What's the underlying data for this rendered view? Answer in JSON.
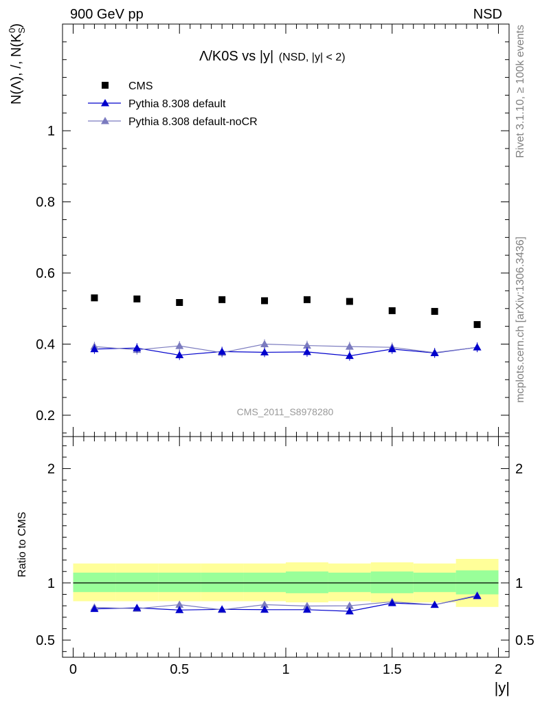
{
  "header": {
    "left": "900 GeV pp",
    "right": "NSD"
  },
  "side_labels": {
    "rivet": "Rivet 3.1.10, ≥ 100k events",
    "mcplots": "mcplots.cern.ch [arXiv:1306.3436]"
  },
  "chart_data": [
    {
      "type": "scatter",
      "title_main": "Λ/K0S vs |y|",
      "title_sub": "(NSD, |y| < 2)",
      "ylabel": "N(Λ), /, N(K_S^0)",
      "watermark": "CMS_2011_S8978280",
      "xlim": [
        -0.05,
        2.05
      ],
      "ylim": [
        0.14,
        1.3
      ],
      "yticks": [
        0.2,
        0.4,
        0.6,
        0.8,
        1.0
      ],
      "ytick_labels": [
        "0.2",
        "0.4",
        "0.6",
        "0.8",
        "1"
      ],
      "legend_position": "top-left",
      "x": [
        0.1,
        0.3,
        0.5,
        0.7,
        0.9,
        1.1,
        1.3,
        1.5,
        1.7,
        1.9
      ],
      "series": [
        {
          "name": "CMS",
          "color": "#000000",
          "marker": "square",
          "values": [
            0.53,
            0.527,
            0.517,
            0.525,
            0.522,
            0.525,
            0.52,
            0.494,
            0.492,
            0.455
          ]
        },
        {
          "name": "Pythia 8.308 default",
          "color": "#0000cc",
          "marker": "triangle",
          "values": [
            0.386,
            0.389,
            0.369,
            0.379,
            0.377,
            0.378,
            0.367,
            0.386,
            0.375,
            0.391
          ]
        },
        {
          "name": "Pythia 8.308 default-noCR",
          "color": "#7b7bbf",
          "marker": "triangle",
          "values": [
            0.393,
            0.384,
            0.395,
            0.376,
            0.4,
            0.396,
            0.393,
            0.391,
            0.376,
            0.391
          ]
        }
      ]
    },
    {
      "type": "scatter",
      "ylabel": "Ratio to CMS",
      "xlabel": "|y|",
      "xlim": [
        -0.05,
        2.05
      ],
      "ylim": [
        0.35,
        2.28
      ],
      "yticks": [
        0.5,
        1.0,
        2.0
      ],
      "ytick_labels": [
        "0.5",
        "1",
        "2"
      ],
      "xticks": [
        0,
        0.5,
        1,
        1.5,
        2
      ],
      "xtick_labels": [
        "0",
        "0.5",
        "1",
        "1.5",
        "2"
      ],
      "reference_line": 1.0,
      "band_edges": [
        0,
        0.2,
        0.4,
        0.6,
        0.8,
        1.0,
        1.2,
        1.4,
        1.6,
        1.8,
        2.0
      ],
      "band_yellow": [
        [
          0.84,
          1.17
        ],
        [
          0.84,
          1.17
        ],
        [
          0.84,
          1.17
        ],
        [
          0.84,
          1.17
        ],
        [
          0.84,
          1.17
        ],
        [
          0.83,
          1.18
        ],
        [
          0.84,
          1.17
        ],
        [
          0.83,
          1.18
        ],
        [
          0.83,
          1.17
        ],
        [
          0.79,
          1.21
        ]
      ],
      "band_green": [
        [
          0.92,
          1.09
        ],
        [
          0.92,
          1.09
        ],
        [
          0.92,
          1.09
        ],
        [
          0.92,
          1.09
        ],
        [
          0.92,
          1.09
        ],
        [
          0.91,
          1.1
        ],
        [
          0.92,
          1.09
        ],
        [
          0.91,
          1.1
        ],
        [
          0.92,
          1.09
        ],
        [
          0.9,
          1.11
        ]
      ],
      "x": [
        0.1,
        0.3,
        0.5,
        0.7,
        0.9,
        1.1,
        1.3,
        1.5,
        1.7,
        1.9
      ],
      "series": [
        {
          "name": "Pythia 8.308 default",
          "color": "#0000cc",
          "values": [
            0.773,
            0.782,
            0.763,
            0.769,
            0.766,
            0.766,
            0.752,
            0.824,
            0.809,
            0.886
          ]
        },
        {
          "name": "Pythia 8.308 default-noCR",
          "color": "#7b7bbf",
          "values": [
            0.786,
            0.775,
            0.81,
            0.765,
            0.81,
            0.798,
            0.8,
            0.835,
            0.809,
            0.891
          ]
        }
      ]
    }
  ]
}
